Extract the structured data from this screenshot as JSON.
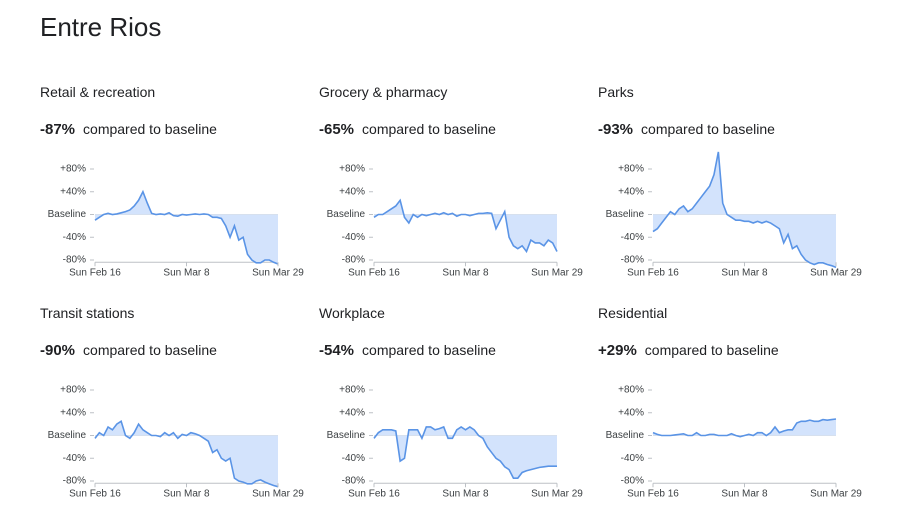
{
  "title": "Entre Rios",
  "chart_data": [
    {
      "type": "line",
      "title": "Retail & recreation",
      "change": "-87%",
      "change_text": "compared to baseline",
      "categories": [
        "Sun Feb 16",
        null,
        null,
        null,
        null,
        null,
        null,
        null,
        null,
        null,
        null,
        null,
        null,
        null,
        null,
        null,
        null,
        null,
        null,
        null,
        null,
        "Sun Mar 8",
        null,
        null,
        null,
        null,
        null,
        null,
        null,
        null,
        null,
        null,
        null,
        null,
        null,
        null,
        null,
        null,
        null,
        null,
        null,
        null,
        "Sun Mar 29"
      ],
      "values": [
        -10,
        -5,
        0,
        2,
        0,
        1,
        3,
        5,
        8,
        15,
        25,
        40,
        20,
        2,
        0,
        1,
        0,
        3,
        -2,
        -3,
        0,
        -1,
        0,
        1,
        0,
        1,
        0,
        -5,
        -5,
        -7,
        -20,
        -40,
        -20,
        -45,
        -40,
        -70,
        -80,
        -85,
        -85,
        -80,
        -80,
        -84,
        -87
      ],
      "color": "#5a94e6",
      "fill": "#d3e3fc",
      "ylim": [
        -84,
        130
      ],
      "yticks": [
        {
          "value": 80,
          "label": "+80%"
        },
        {
          "value": 40,
          "label": "+40%"
        },
        {
          "value": 0,
          "label": "Baseline"
        },
        {
          "value": -40,
          "label": "-40%"
        },
        {
          "value": -80,
          "label": "-80%"
        }
      ]
    },
    {
      "type": "line",
      "title": "Grocery & pharmacy",
      "change": "-65%",
      "change_text": "compared to baseline",
      "categories": [
        "Sun Feb 16",
        null,
        null,
        null,
        null,
        null,
        null,
        null,
        null,
        null,
        null,
        null,
        null,
        null,
        null,
        null,
        null,
        null,
        null,
        null,
        null,
        "Sun Mar 8",
        null,
        null,
        null,
        null,
        null,
        null,
        null,
        null,
        null,
        null,
        null,
        null,
        null,
        null,
        null,
        null,
        null,
        null,
        null,
        null,
        "Sun Mar 29"
      ],
      "values": [
        -5,
        0,
        0,
        5,
        10,
        15,
        25,
        -5,
        -15,
        0,
        -5,
        0,
        -2,
        0,
        2,
        0,
        3,
        0,
        2,
        -3,
        0,
        0,
        -2,
        0,
        2,
        2,
        3,
        2,
        -25,
        -10,
        5,
        -40,
        -55,
        -60,
        -55,
        -65,
        -45,
        -50,
        -50,
        -55,
        -45,
        -50,
        -65
      ],
      "color": "#5a94e6",
      "fill": "#d3e3fc",
      "ylim": [
        -84,
        130
      ],
      "yticks": [
        {
          "value": 80,
          "label": "+80%"
        },
        {
          "value": 40,
          "label": "+40%"
        },
        {
          "value": 0,
          "label": "Baseline"
        },
        {
          "value": -40,
          "label": "-40%"
        },
        {
          "value": -80,
          "label": "-80%"
        }
      ]
    },
    {
      "type": "line",
      "title": "Parks",
      "change": "-93%",
      "change_text": "compared to baseline",
      "categories": [
        "Sun Feb 16",
        null,
        null,
        null,
        null,
        null,
        null,
        null,
        null,
        null,
        null,
        null,
        null,
        null,
        null,
        null,
        null,
        null,
        null,
        null,
        null,
        "Sun Mar 8",
        null,
        null,
        null,
        null,
        null,
        null,
        null,
        null,
        null,
        null,
        null,
        null,
        null,
        null,
        null,
        null,
        null,
        null,
        null,
        null,
        "Sun Mar 29"
      ],
      "values": [
        -30,
        -25,
        -15,
        -5,
        5,
        0,
        10,
        15,
        5,
        10,
        20,
        30,
        40,
        50,
        70,
        110,
        20,
        0,
        -5,
        -10,
        -10,
        -12,
        -12,
        -15,
        -12,
        -15,
        -12,
        -15,
        -20,
        -25,
        -50,
        -35,
        -60,
        -55,
        -70,
        -80,
        -85,
        -88,
        -85,
        -85,
        -88,
        -90,
        -93
      ],
      "color": "#5a94e6",
      "fill": "#d3e3fc",
      "ylim": [
        -84,
        130
      ],
      "yticks": [
        {
          "value": 80,
          "label": "+80%"
        },
        {
          "value": 40,
          "label": "+40%"
        },
        {
          "value": 0,
          "label": "Baseline"
        },
        {
          "value": -40,
          "label": "-40%"
        },
        {
          "value": -80,
          "label": "-80%"
        }
      ]
    },
    {
      "type": "line",
      "title": "Transit stations",
      "change": "-90%",
      "change_text": "compared to baseline",
      "categories": [
        "Sun Feb 16",
        null,
        null,
        null,
        null,
        null,
        null,
        null,
        null,
        null,
        null,
        null,
        null,
        null,
        null,
        null,
        null,
        null,
        null,
        null,
        null,
        "Sun Mar 8",
        null,
        null,
        null,
        null,
        null,
        null,
        null,
        null,
        null,
        null,
        null,
        null,
        null,
        null,
        null,
        null,
        null,
        null,
        null,
        null,
        "Sun Mar 29"
      ],
      "values": [
        -5,
        5,
        0,
        15,
        10,
        20,
        25,
        0,
        -5,
        5,
        20,
        10,
        5,
        0,
        0,
        -2,
        5,
        0,
        5,
        -5,
        2,
        0,
        5,
        3,
        0,
        -5,
        -10,
        -30,
        -25,
        -40,
        -45,
        -40,
        -75,
        -80,
        -82,
        -85,
        -85,
        -80,
        -78,
        -82,
        -85,
        -88,
        -90
      ],
      "color": "#5a94e6",
      "fill": "#d3e3fc",
      "ylim": [
        -84,
        130
      ],
      "yticks": [
        {
          "value": 80,
          "label": "+80%"
        },
        {
          "value": 40,
          "label": "+40%"
        },
        {
          "value": 0,
          "label": "Baseline"
        },
        {
          "value": -40,
          "label": "-40%"
        },
        {
          "value": -80,
          "label": "-80%"
        }
      ]
    },
    {
      "type": "line",
      "title": "Workplace",
      "change": "-54%",
      "change_text": "compared to baseline",
      "categories": [
        "Sun Feb 16",
        null,
        null,
        null,
        null,
        null,
        null,
        null,
        null,
        null,
        null,
        null,
        null,
        null,
        null,
        null,
        null,
        null,
        null,
        null,
        null,
        "Sun Mar 8",
        null,
        null,
        null,
        null,
        null,
        null,
        null,
        null,
        null,
        null,
        null,
        null,
        null,
        null,
        null,
        null,
        null,
        null,
        null,
        null,
        "Sun Mar 29"
      ],
      "values": [
        -5,
        5,
        10,
        10,
        10,
        8,
        -45,
        -40,
        10,
        10,
        10,
        -5,
        15,
        15,
        10,
        12,
        15,
        -5,
        -5,
        10,
        15,
        10,
        15,
        10,
        0,
        -5,
        -20,
        -30,
        -40,
        -45,
        -55,
        -60,
        -75,
        -75,
        -65,
        -62,
        -60,
        -58,
        -56,
        -55,
        -54,
        -54,
        -54
      ],
      "color": "#5a94e6",
      "fill": "#d3e3fc",
      "ylim": [
        -84,
        130
      ],
      "yticks": [
        {
          "value": 80,
          "label": "+80%"
        },
        {
          "value": 40,
          "label": "+40%"
        },
        {
          "value": 0,
          "label": "Baseline"
        },
        {
          "value": -40,
          "label": "-40%"
        },
        {
          "value": -80,
          "label": "-80%"
        }
      ]
    },
    {
      "type": "line",
      "title": "Residential",
      "change": "+29%",
      "change_text": "compared to baseline",
      "categories": [
        "Sun Feb 16",
        null,
        null,
        null,
        null,
        null,
        null,
        null,
        null,
        null,
        null,
        null,
        null,
        null,
        null,
        null,
        null,
        null,
        null,
        null,
        null,
        "Sun Mar 8",
        null,
        null,
        null,
        null,
        null,
        null,
        null,
        null,
        null,
        null,
        null,
        null,
        null,
        null,
        null,
        null,
        null,
        null,
        null,
        null,
        "Sun Mar 29"
      ],
      "values": [
        5,
        2,
        0,
        0,
        0,
        1,
        2,
        3,
        0,
        0,
        5,
        0,
        0,
        2,
        2,
        0,
        0,
        0,
        3,
        0,
        -2,
        0,
        2,
        0,
        5,
        5,
        0,
        5,
        15,
        5,
        8,
        10,
        10,
        22,
        25,
        25,
        27,
        25,
        25,
        28,
        27,
        28,
        29
      ],
      "color": "#5a94e6",
      "fill": "#d3e3fc",
      "ylim": [
        -84,
        130
      ],
      "yticks": [
        {
          "value": 80,
          "label": "+80%"
        },
        {
          "value": 40,
          "label": "+40%"
        },
        {
          "value": 0,
          "label": "Baseline"
        },
        {
          "value": -40,
          "label": "-40%"
        },
        {
          "value": -80,
          "label": "-80%"
        }
      ]
    }
  ]
}
